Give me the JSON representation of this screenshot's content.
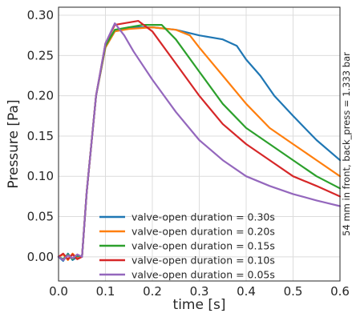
{
  "chart_data": {
    "type": "line",
    "xlabel": "time [s]",
    "ylabel": "Pressure [Pa]",
    "right_annotation": "54 mm in front, back_press = 1.333 bar",
    "xlim": [
      0.0,
      0.6
    ],
    "ylim": [
      -0.03,
      0.31
    ],
    "xticks": [
      "0.0",
      "0.1",
      "0.2",
      "0.3",
      "0.4",
      "0.5",
      "0.6"
    ],
    "xtick_values": [
      0.0,
      0.1,
      0.2,
      0.3,
      0.4,
      0.5,
      0.6
    ],
    "yticks": [
      "0.00",
      "0.05",
      "0.10",
      "0.15",
      "0.20",
      "0.25",
      "0.30"
    ],
    "ytick_values": [
      0.0,
      0.05,
      0.1,
      0.15,
      0.2,
      0.25,
      0.3
    ],
    "grid": true,
    "legend_position": "lower-center",
    "series": [
      {
        "name": "valve-open duration = 0.30s",
        "color": "#1f77b4",
        "points": [
          [
            0.0,
            0.0
          ],
          [
            0.01,
            -0.005
          ],
          [
            0.02,
            0.004
          ],
          [
            0.03,
            -0.004
          ],
          [
            0.04,
            0.0
          ],
          [
            0.05,
            0.0
          ],
          [
            0.06,
            0.08
          ],
          [
            0.08,
            0.2
          ],
          [
            0.1,
            0.26
          ],
          [
            0.12,
            0.28
          ],
          [
            0.15,
            0.285
          ],
          [
            0.2,
            0.285
          ],
          [
            0.25,
            0.282
          ],
          [
            0.3,
            0.275
          ],
          [
            0.35,
            0.27
          ],
          [
            0.38,
            0.262
          ],
          [
            0.4,
            0.245
          ],
          [
            0.43,
            0.225
          ],
          [
            0.46,
            0.2
          ],
          [
            0.5,
            0.175
          ],
          [
            0.55,
            0.145
          ],
          [
            0.6,
            0.12
          ]
        ]
      },
      {
        "name": "valve-open duration = 0.20s",
        "color": "#ff7f0e",
        "points": [
          [
            0.0,
            0.0
          ],
          [
            0.01,
            0.003
          ],
          [
            0.02,
            -0.004
          ],
          [
            0.03,
            0.004
          ],
          [
            0.04,
            -0.002
          ],
          [
            0.05,
            0.0
          ],
          [
            0.06,
            0.08
          ],
          [
            0.08,
            0.2
          ],
          [
            0.1,
            0.26
          ],
          [
            0.12,
            0.28
          ],
          [
            0.15,
            0.283
          ],
          [
            0.2,
            0.285
          ],
          [
            0.25,
            0.282
          ],
          [
            0.28,
            0.275
          ],
          [
            0.3,
            0.26
          ],
          [
            0.35,
            0.225
          ],
          [
            0.4,
            0.19
          ],
          [
            0.45,
            0.16
          ],
          [
            0.5,
            0.14
          ],
          [
            0.55,
            0.12
          ],
          [
            0.6,
            0.1
          ]
        ]
      },
      {
        "name": "valve-open duration = 0.15s",
        "color": "#2ca02c",
        "points": [
          [
            0.0,
            0.0
          ],
          [
            0.01,
            -0.003
          ],
          [
            0.02,
            0.003
          ],
          [
            0.03,
            -0.003
          ],
          [
            0.04,
            0.002
          ],
          [
            0.05,
            0.0
          ],
          [
            0.06,
            0.08
          ],
          [
            0.08,
            0.2
          ],
          [
            0.1,
            0.262
          ],
          [
            0.12,
            0.282
          ],
          [
            0.15,
            0.285
          ],
          [
            0.18,
            0.288
          ],
          [
            0.22,
            0.288
          ],
          [
            0.25,
            0.27
          ],
          [
            0.3,
            0.23
          ],
          [
            0.35,
            0.19
          ],
          [
            0.4,
            0.16
          ],
          [
            0.45,
            0.14
          ],
          [
            0.5,
            0.12
          ],
          [
            0.55,
            0.1
          ],
          [
            0.6,
            0.085
          ]
        ]
      },
      {
        "name": "valve-open duration = 0.10s",
        "color": "#d62728",
        "points": [
          [
            0.0,
            0.0
          ],
          [
            0.01,
            0.004
          ],
          [
            0.02,
            -0.003
          ],
          [
            0.03,
            0.003
          ],
          [
            0.04,
            -0.003
          ],
          [
            0.05,
            0.0
          ],
          [
            0.06,
            0.08
          ],
          [
            0.08,
            0.2
          ],
          [
            0.1,
            0.265
          ],
          [
            0.12,
            0.288
          ],
          [
            0.14,
            0.29
          ],
          [
            0.17,
            0.293
          ],
          [
            0.2,
            0.28
          ],
          [
            0.25,
            0.24
          ],
          [
            0.3,
            0.2
          ],
          [
            0.35,
            0.165
          ],
          [
            0.4,
            0.14
          ],
          [
            0.45,
            0.12
          ],
          [
            0.5,
            0.1
          ],
          [
            0.55,
            0.088
          ],
          [
            0.6,
            0.075
          ]
        ]
      },
      {
        "name": "valve-open duration = 0.05s",
        "color": "#9467bd",
        "points": [
          [
            0.0,
            0.0
          ],
          [
            0.01,
            -0.004
          ],
          [
            0.02,
            0.002
          ],
          [
            0.03,
            -0.002
          ],
          [
            0.04,
            0.003
          ],
          [
            0.05,
            0.0
          ],
          [
            0.06,
            0.08
          ],
          [
            0.08,
            0.2
          ],
          [
            0.1,
            0.265
          ],
          [
            0.12,
            0.29
          ],
          [
            0.14,
            0.275
          ],
          [
            0.16,
            0.255
          ],
          [
            0.2,
            0.22
          ],
          [
            0.25,
            0.18
          ],
          [
            0.3,
            0.145
          ],
          [
            0.35,
            0.12
          ],
          [
            0.4,
            0.1
          ],
          [
            0.45,
            0.088
          ],
          [
            0.5,
            0.078
          ],
          [
            0.55,
            0.07
          ],
          [
            0.6,
            0.063
          ]
        ]
      }
    ]
  }
}
